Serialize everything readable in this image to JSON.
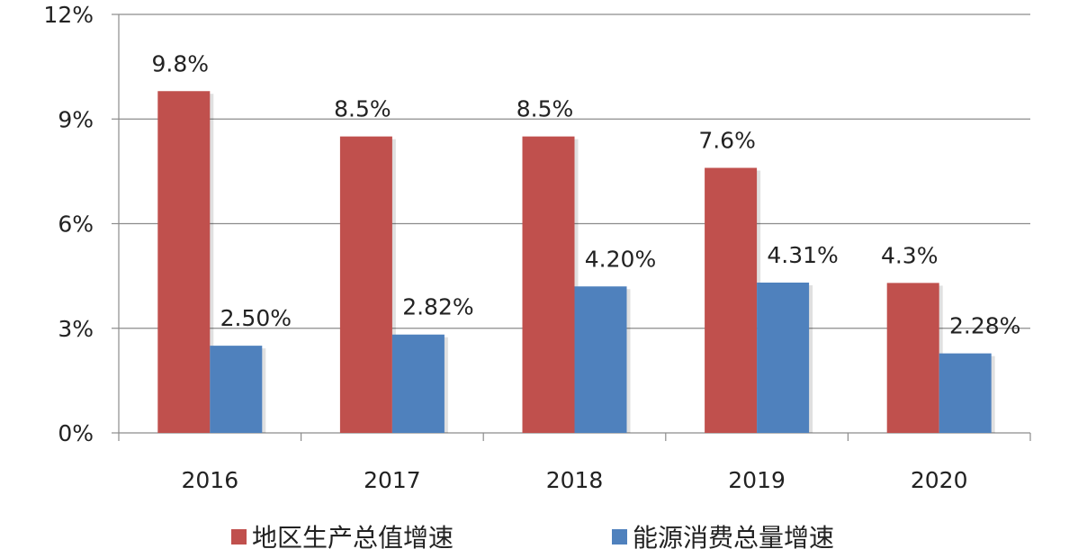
{
  "chart_data": {
    "type": "bar",
    "categories": [
      "2016",
      "2017",
      "2018",
      "2019",
      "2020"
    ],
    "series": [
      {
        "name": "地区生产总值增速",
        "values": [
          9.8,
          8.5,
          8.5,
          7.6,
          4.3
        ],
        "labels": [
          "9.8%",
          "8.5%",
          "8.5%",
          "7.6%",
          "4.3%"
        ],
        "color": "#C0504D"
      },
      {
        "name": "能源消费总量增速",
        "values": [
          2.5,
          2.82,
          4.2,
          4.31,
          2.28
        ],
        "labels": [
          "2.50%",
          "2.82%",
          "4.20%",
          "4.31%",
          "2.28%"
        ],
        "color": "#4F81BD"
      }
    ],
    "ylim": [
      0,
      12
    ],
    "yticks": [
      0,
      3,
      6,
      9,
      12
    ],
    "ytick_labels": [
      "0%",
      "3%",
      "6%",
      "9%",
      "12%"
    ],
    "grid": true,
    "legend_position": "bottom"
  }
}
